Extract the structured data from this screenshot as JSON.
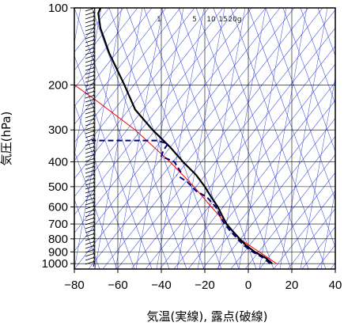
{
  "chart_data": {
    "type": "skew-t",
    "xlabel": "気温(実線), 露点(破線)",
    "ylabel": "気圧(hPa)",
    "x_ticks": [
      -80,
      -60,
      -40,
      -20,
      0,
      20,
      40
    ],
    "y_ticks": [
      100,
      200,
      300,
      400,
      500,
      600,
      700,
      800,
      900,
      1000
    ],
    "xlim": [
      -80,
      40
    ],
    "ylim": [
      1050,
      100
    ],
    "y_scale": "log",
    "mixing_ratio_labels": [
      "1",
      "5",
      "10",
      "15",
      "20g"
    ],
    "colors": {
      "temperature": "#000000",
      "dewpoint": "#000080",
      "parcel": "#ff0000",
      "background_lines": "#3344dd",
      "grid": "#000000"
    },
    "temperature_profile": [
      {
        "p": 1000,
        "t": 11
      },
      {
        "p": 950,
        "t": 8
      },
      {
        "p": 900,
        "t": 3
      },
      {
        "p": 850,
        "t": -1
      },
      {
        "p": 800,
        "t": -4
      },
      {
        "p": 750,
        "t": -7
      },
      {
        "p": 700,
        "t": -10
      },
      {
        "p": 650,
        "t": -12
      },
      {
        "p": 600,
        "t": -14
      },
      {
        "p": 550,
        "t": -17
      },
      {
        "p": 500,
        "t": -20
      },
      {
        "p": 450,
        "t": -24
      },
      {
        "p": 400,
        "t": -30
      },
      {
        "p": 350,
        "t": -36
      },
      {
        "p": 300,
        "t": -44
      },
      {
        "p": 250,
        "t": -52
      },
      {
        "p": 200,
        "t": -57
      },
      {
        "p": 150,
        "t": -64
      },
      {
        "p": 120,
        "t": -68
      },
      {
        "p": 105,
        "t": -69
      },
      {
        "p": 100,
        "t": -68
      }
    ],
    "dewpoint_segments": [
      [
        {
          "p": 1000,
          "t": 10
        },
        {
          "p": 950,
          "t": 7
        },
        {
          "p": 900,
          "t": 2
        },
        {
          "p": 850,
          "t": -2
        },
        {
          "p": 800,
          "t": -5
        },
        {
          "p": 750,
          "t": -8
        },
        {
          "p": 700,
          "t": -11
        },
        {
          "p": 650,
          "t": -13
        },
        {
          "p": 600,
          "t": -15
        },
        {
          "p": 550,
          "t": -19
        },
        {
          "p": 520,
          "t": -24
        },
        {
          "p": 480,
          "t": -28
        },
        {
          "p": 450,
          "t": -33
        }
      ],
      [
        {
          "p": 440,
          "t": -31
        },
        {
          "p": 400,
          "t": -34
        },
        {
          "p": 380,
          "t": -40
        },
        {
          "p": 360,
          "t": -39
        },
        {
          "p": 340,
          "t": -37
        },
        {
          "p": 330,
          "t": -42
        },
        {
          "p": 330,
          "t": -72
        }
      ]
    ],
    "parcel_profile": [
      {
        "p": 1000,
        "t": 13
      },
      {
        "p": 900,
        "t": 5
      },
      {
        "p": 800,
        "t": -4
      },
      {
        "p": 700,
        "t": -10
      },
      {
        "p": 600,
        "t": -17
      },
      {
        "p": 500,
        "t": -25
      },
      {
        "p": 400,
        "t": -36
      },
      {
        "p": 300,
        "t": -52
      },
      {
        "p": 230,
        "t": -70
      },
      {
        "p": 200,
        "t": -80
      }
    ]
  }
}
